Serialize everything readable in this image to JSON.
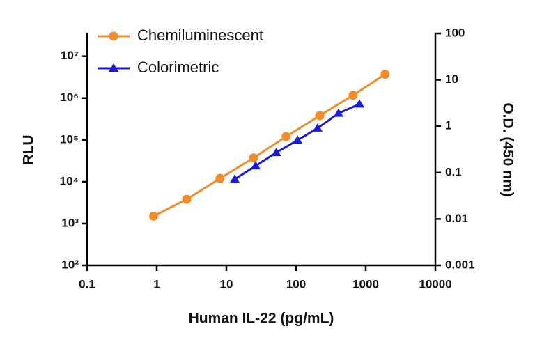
{
  "chart_data": {
    "type": "line",
    "x_label": "Human IL-22 (pg/mL)",
    "y_label": "RLU",
    "y2_label": "O.D. (450 nm)",
    "log_x": true,
    "log_y": true,
    "log_y2": true,
    "xlim": [
      0.1,
      10000
    ],
    "xticks": [
      0.1,
      1,
      10,
      100,
      1000,
      10000
    ],
    "ylim": [
      100,
      35000000
    ],
    "yticks": [
      {
        "value": 100,
        "label": "10²"
      },
      {
        "value": 1000,
        "label": "10³"
      },
      {
        "value": 10000,
        "label": "10⁴"
      },
      {
        "value": 100000,
        "label": "10⁵"
      },
      {
        "value": 1000000,
        "label": "10⁶"
      },
      {
        "value": 10000000,
        "label": "10⁷"
      }
    ],
    "y2lim": [
      0.001,
      100
    ],
    "y2ticks": [
      0.001,
      0.01,
      0.1,
      1,
      10,
      100
    ],
    "legend": "top-left",
    "series": [
      {
        "name": "Chemiluminescent",
        "color": "#f28c28",
        "marker": "circle",
        "x": [
          0.9,
          2.7,
          8.1,
          24.5,
          72,
          219,
          660,
          1900
        ],
        "values": [
          1500,
          3800,
          12000,
          37000,
          120000,
          380000,
          1170000,
          3700000
        ]
      },
      {
        "name": "Colorimetric",
        "color": "#1a1adb",
        "marker": "triangle",
        "axis": "y2",
        "x": [
          13.2,
          26.3,
          52,
          105,
          204,
          407,
          813
        ],
        "values": [
          0.072,
          0.14,
          0.27,
          0.5,
          0.91,
          1.9,
          3.0
        ]
      }
    ]
  }
}
